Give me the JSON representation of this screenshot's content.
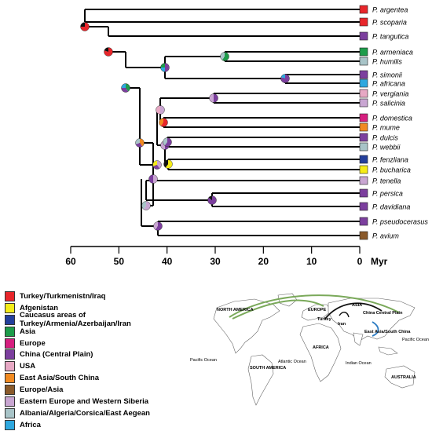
{
  "axis": {
    "ticks": [
      "60",
      "50",
      "40",
      "30",
      "20",
      "10",
      "0"
    ],
    "unit": "Myr"
  },
  "taxa": [
    {
      "name": "P. argentea",
      "color": "#e8262b"
    },
    {
      "name": "P. scoparia",
      "color": "#e8262b"
    },
    {
      "name": "P. tangutica",
      "color": "#7c3f9e"
    },
    {
      "name": "P. armeniaca",
      "color": "#1d9c4a"
    },
    {
      "name": "P. humilis",
      "color": "#a8c4c8"
    },
    {
      "name": "P. simonii",
      "color": "#7c3f9e"
    },
    {
      "name": "P. africana",
      "color": "#2ea8df"
    },
    {
      "name": "P. vergiania",
      "color": "#e7a8c4"
    },
    {
      "name": "P. salicinia",
      "color": "#c9a6d2"
    },
    {
      "name": "P. domestica",
      "color": "#d61f7f"
    },
    {
      "name": "P. mume",
      "color": "#f18a21"
    },
    {
      "name": "P. dulcis",
      "color": "#7c3f9e"
    },
    {
      "name": "P. webbii",
      "color": "#a8c4c8"
    },
    {
      "name": "P. fenzliana",
      "color": "#243f9c"
    },
    {
      "name": "P. bucharica",
      "color": "#f5ec17"
    },
    {
      "name": "P. tenella",
      "color": "#c9a6d2"
    },
    {
      "name": "P. persica",
      "color": "#7c3f9e"
    },
    {
      "name": "P. davidiana",
      "color": "#7c3f9e"
    },
    {
      "name": "P. pseudocerasus",
      "color": "#7c3f9e"
    },
    {
      "name": "P. avium",
      "color": "#8a5a2b"
    }
  ],
  "legend": [
    {
      "label": "Turkey/Turkmenistn/Iraq",
      "color": "#e8262b"
    },
    {
      "label": "Afgenistan",
      "color": "#f5ec17"
    },
    {
      "label": "Caucasus areas of Turkey/Armenia/Azerbaijan/Iran",
      "color": "#243f9c"
    },
    {
      "label": "Asia",
      "color": "#1d9c4a"
    },
    {
      "label": "Europe",
      "color": "#d61f7f"
    },
    {
      "label": "China (Central Plain)",
      "color": "#7c3f9e"
    },
    {
      "label": "USA",
      "color": "#e7a8c4"
    },
    {
      "label": "East Asia/South China",
      "color": "#f18a21"
    },
    {
      "label": "Europe/Asia",
      "color": "#8a5a2b"
    },
    {
      "label": "Eastern Europe and Western Siberia",
      "color": "#c9a6d2"
    },
    {
      "label": "Albania/Algeria/Corsica/East Aegean",
      "color": "#a8c4c8"
    },
    {
      "label": "Africa",
      "color": "#2ea8df"
    }
  ],
  "map": {
    "labels": {
      "north_america": "NORTH AMERICA",
      "europe": "EUROPE",
      "asia": "ASIA",
      "china": "China Central Plain",
      "turkey": "Turkey",
      "iran": "Iran",
      "east_asia": "East Asia/South China",
      "africa": "AFRICA",
      "south_america": "SOUTH AMERICA",
      "australia": "AUSTRALIA",
      "pacific_w": "Pacific Ocean",
      "pacific_e": "Pacific Ocean",
      "atlantic": "Atlantic Ocean",
      "indian": "Indian Ocean"
    },
    "route_colors": {
      "green": "#7aa95a",
      "black": "#111111",
      "blue": "#2b7bc2"
    },
    "land_color": "#ffffff",
    "border_color": "#777777"
  }
}
